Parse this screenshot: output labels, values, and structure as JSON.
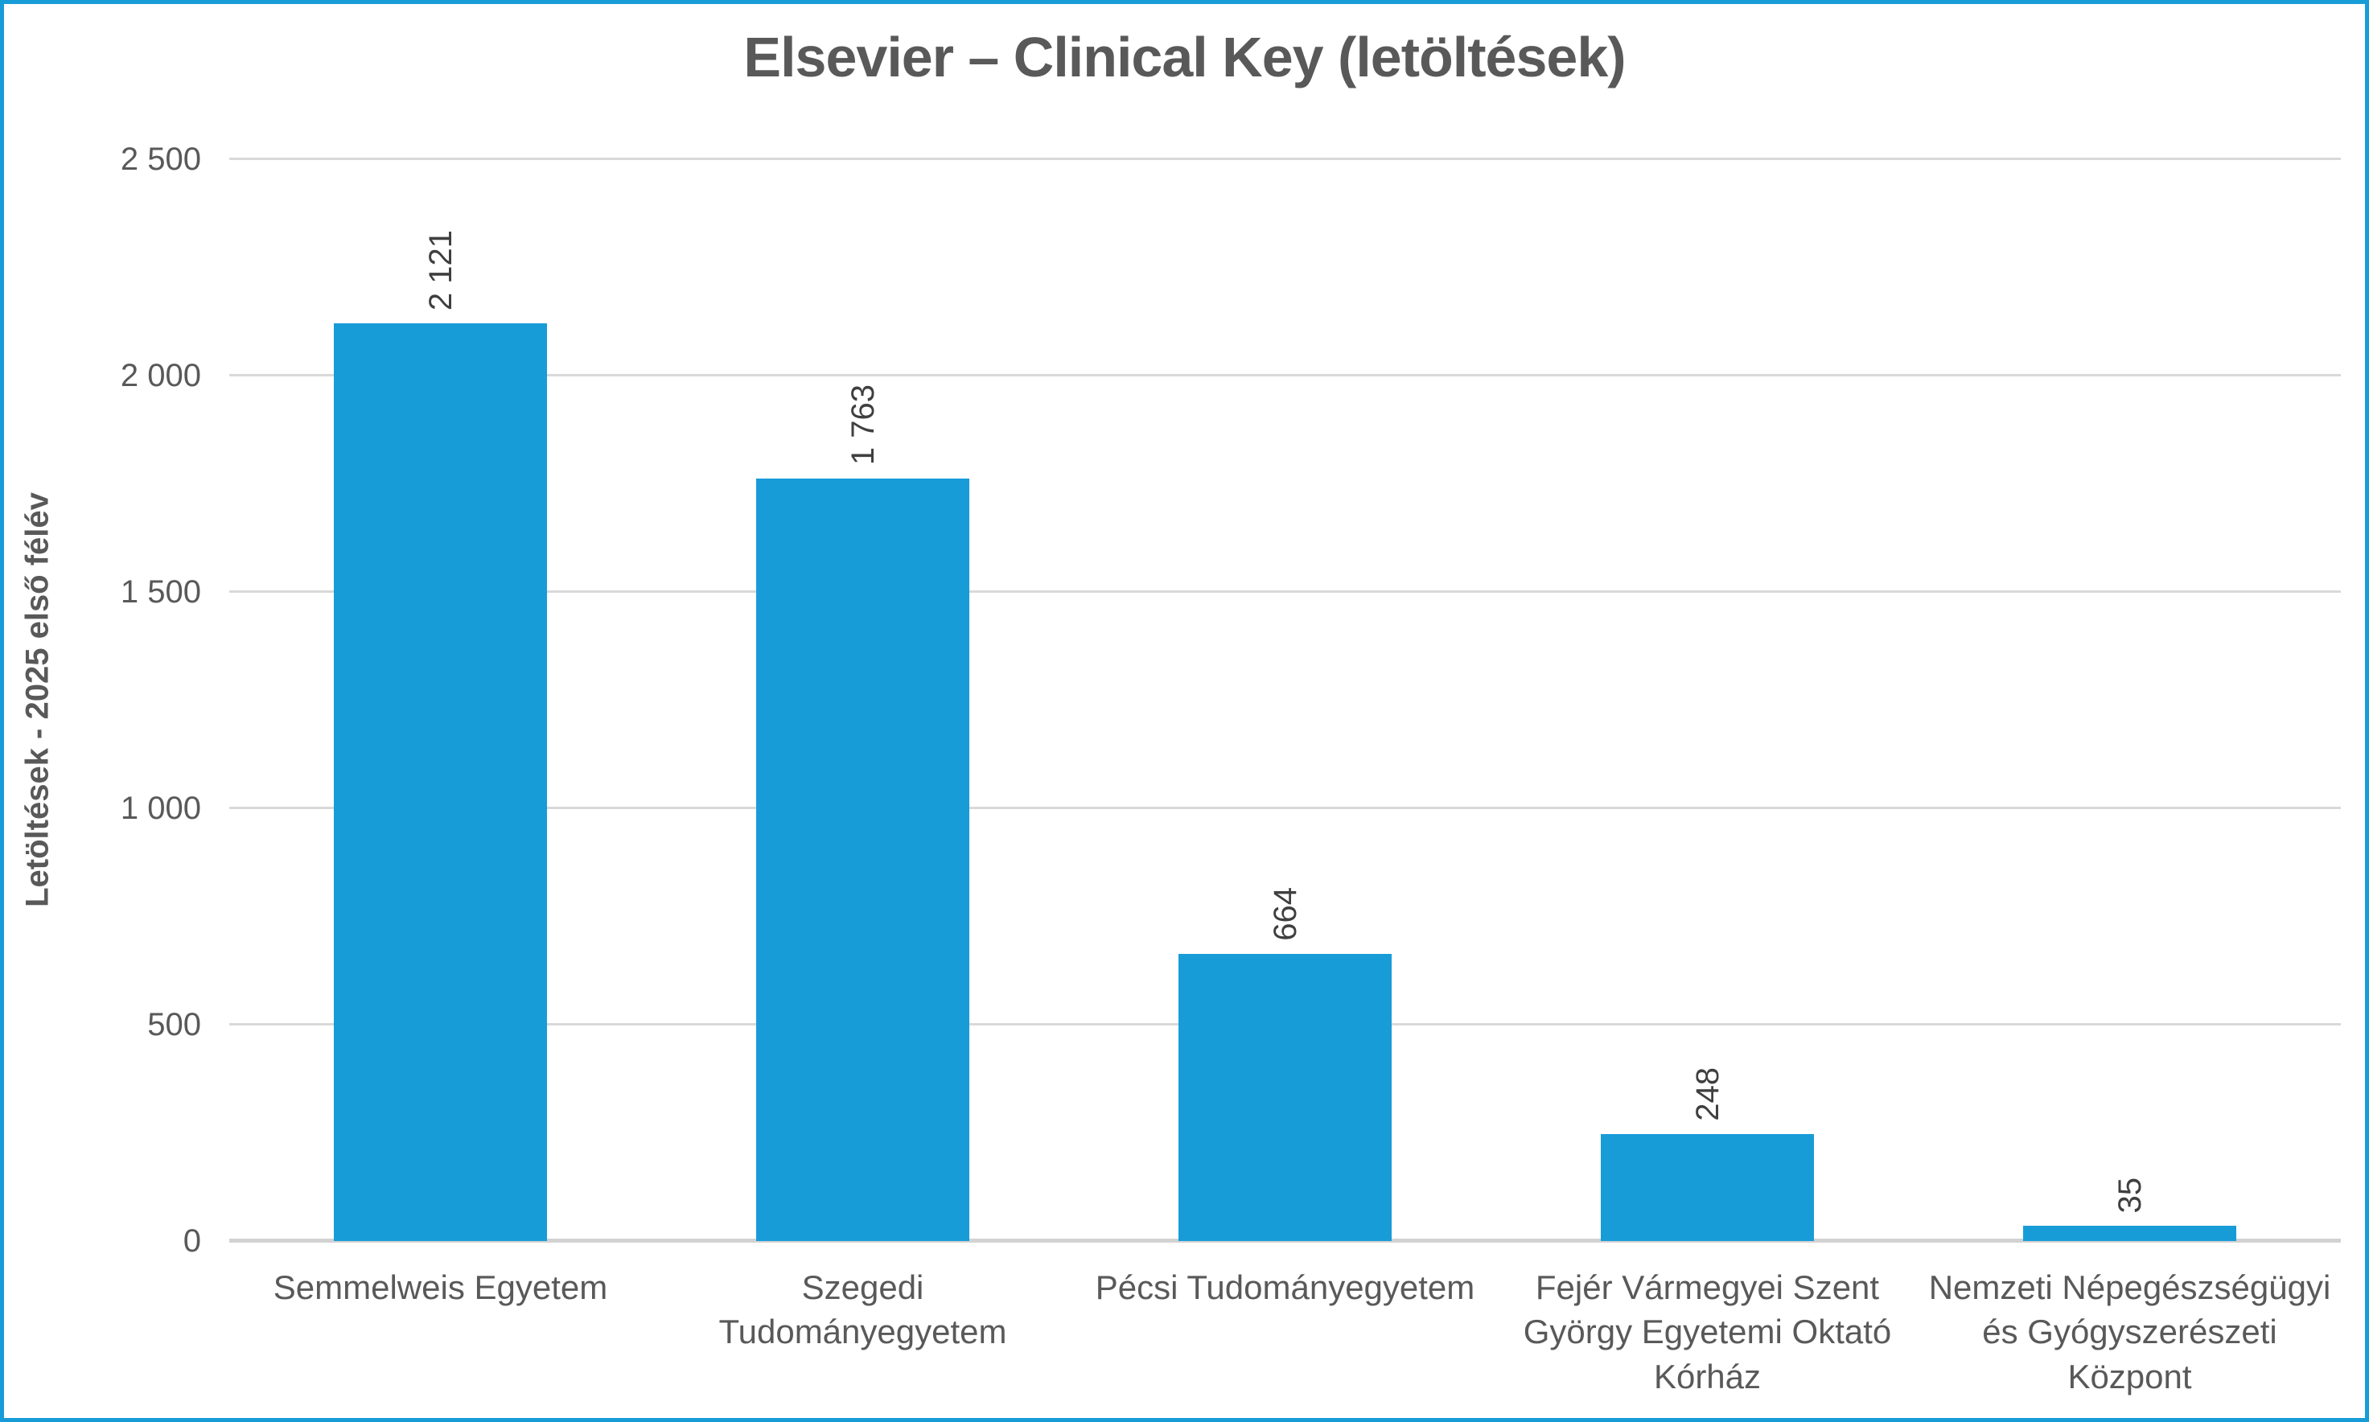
{
  "title": "Elsevier – Clinical Key (letöltések)",
  "colors": {
    "bar": "#189CD8",
    "frame_border": "#189CD8",
    "gridline": "#D9D9D9",
    "axis_line": "#D2D2D2",
    "title_text": "#595959",
    "tick_text": "#595959",
    "category_text": "#595959",
    "data_label_text": "#3F3F3F",
    "background": "#FFFFFF"
  },
  "chart_data": {
    "type": "bar",
    "title": "Elsevier – Clinical Key (letöltések)",
    "xlabel": "",
    "ylabel": "Letöltések - 2025 első félév",
    "categories": [
      "Semmelweis Egyetem",
      "Szegedi Tudományegyetem",
      "Pécsi Tudományegyetem",
      "Fejér Vármegyei Szent György Egyetemi Oktató Kórház",
      "Nemzeti Népegészségügyi és Gyógyszerészeti Központ"
    ],
    "values": [
      2121,
      1763,
      664,
      248,
      35
    ],
    "value_labels": [
      "2 121",
      "1 763",
      "664",
      "248",
      "35"
    ],
    "yticks": [
      0,
      500,
      1000,
      1500,
      2000,
      2500
    ],
    "ytick_labels": [
      "0",
      "500",
      "1 000",
      "1 500",
      "2 000",
      "2 500"
    ],
    "ylim": [
      0,
      2500
    ],
    "grid": true,
    "legend": false,
    "data_label_rotation": -90,
    "bar_color": "#189CD8"
  }
}
